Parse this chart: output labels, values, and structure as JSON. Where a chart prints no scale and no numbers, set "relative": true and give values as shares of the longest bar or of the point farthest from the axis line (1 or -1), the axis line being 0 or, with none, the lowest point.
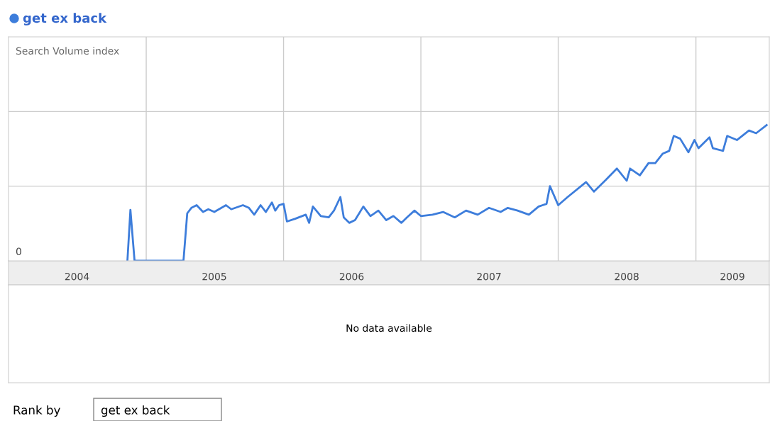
{
  "chart_data": {
    "type": "line",
    "title": "get ex back",
    "relative": true,
    "grid": true,
    "legend": false,
    "marker": "none",
    "line_style": "solid",
    "x": [
      "2004-11-12",
      "2004-11-20",
      "2004-12-01",
      "2005-04-10",
      "2005-04-20",
      "2005-05-01",
      "2005-05-15",
      "2005-06-01",
      "2005-06-15",
      "2005-07-01",
      "2005-08-01",
      "2005-08-15",
      "2005-09-15",
      "2005-10-01",
      "2005-10-15",
      "2005-11-01",
      "2005-11-15",
      "2005-12-01",
      "2005-12-10",
      "2005-12-20",
      "2006-01-01",
      "2006-01-10",
      "2006-02-01",
      "2006-03-01",
      "2006-03-10",
      "2006-03-20",
      "2006-04-10",
      "2006-05-01",
      "2006-05-15",
      "2006-06-01",
      "2006-06-10",
      "2006-06-25",
      "2006-07-10",
      "2006-08-01",
      "2006-08-20",
      "2006-09-10",
      "2006-10-01",
      "2006-10-20",
      "2006-11-10",
      "2006-11-25",
      "2006-12-15",
      "2007-01-01",
      "2007-02-01",
      "2007-03-01",
      "2007-04-01",
      "2007-05-01",
      "2007-06-01",
      "2007-07-01",
      "2007-08-01",
      "2007-08-20",
      "2007-09-15",
      "2007-10-15",
      "2007-11-10",
      "2007-12-01",
      "2007-12-10",
      "2008-01-01",
      "2008-01-26",
      "2008-03-15",
      "2008-04-05",
      "2008-05-08",
      "2008-06-05",
      "2008-07-01",
      "2008-07-10",
      "2008-08-05",
      "2008-08-28",
      "2008-09-15",
      "2008-10-05",
      "2008-10-22",
      "2008-11-03",
      "2008-11-20",
      "2008-12-12",
      "2008-12-28",
      "2009-01-08",
      "2009-02-06",
      "2009-02-15",
      "2009-03-14",
      "2009-03-25",
      "2009-04-20",
      "2009-05-22",
      "2009-06-10",
      "2009-07-08"
    ],
    "series": [
      {
        "color": "#3d7ddb",
        "values": [
          0,
          0.375,
          0,
          0,
          0.35,
          0.39,
          0.41,
          0.36,
          0.38,
          0.36,
          0.41,
          0.38,
          0.41,
          0.39,
          0.34,
          0.41,
          0.36,
          0.43,
          0.37,
          0.41,
          0.42,
          0.29,
          0.31,
          0.34,
          0.28,
          0.4,
          0.33,
          0.32,
          0.37,
          0.47,
          0.32,
          0.28,
          0.3,
          0.4,
          0.33,
          0.37,
          0.3,
          0.33,
          0.28,
          0.32,
          0.37,
          0.33,
          0.34,
          0.36,
          0.32,
          0.37,
          0.34,
          0.39,
          0.36,
          0.39,
          0.37,
          0.34,
          0.4,
          0.42,
          0.55,
          0.41,
          0.47,
          0.58,
          0.51,
          0.6,
          0.68,
          0.59,
          0.68,
          0.63,
          0.72,
          0.72,
          0.79,
          0.81,
          0.92,
          0.9,
          0.8,
          0.89,
          0.83,
          0.91,
          0.83,
          0.81,
          0.92,
          0.89,
          0.96,
          0.94,
          1.0
        ]
      }
    ],
    "xlim": [
      "2004-01-01",
      "2009-07-15"
    ],
    "xticks": [
      {
        "value": "2004-07-01",
        "label": "2004"
      },
      {
        "value": "2005-07-01",
        "label": "2005"
      },
      {
        "value": "2006-07-01",
        "label": "2006"
      },
      {
        "value": "2007-07-01",
        "label": "2007"
      },
      {
        "value": "2008-07-01",
        "label": "2008"
      },
      {
        "value": "2009-04-08",
        "label": "2009"
      }
    ],
    "annotations": [
      "Search Volume index",
      "0",
      "No data available",
      "Rank by",
      "get ex back"
    ]
  }
}
